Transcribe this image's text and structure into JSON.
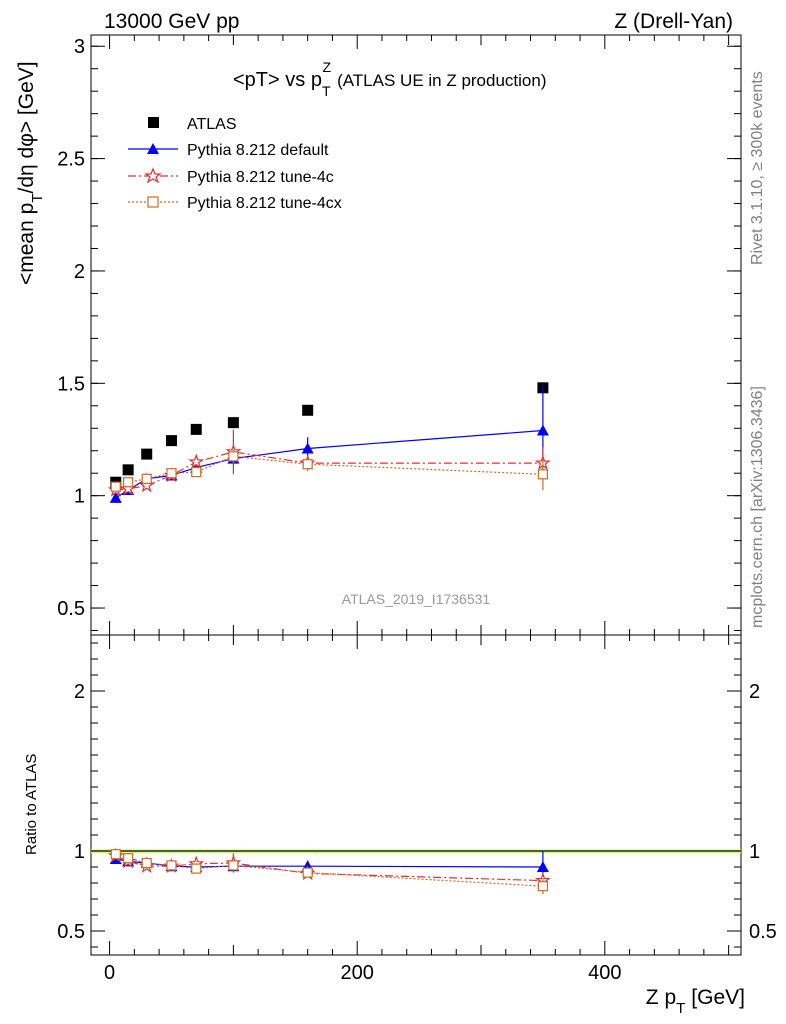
{
  "header": {
    "left_label": "13000 GeV pp",
    "right_label": "Z (Drell-Yan)"
  },
  "side_labels": {
    "rivet": "Rivet 3.1.10, ≥ 300k events",
    "mcplots": "mcplots.cern.ch [arXiv:1306.3436]"
  },
  "chart_data": [
    {
      "type": "scatter",
      "title": "<pT> vs p_T^Z (ATLAS UE in Z production)",
      "title_main": "<pT> vs p",
      "title_sub": "T",
      "title_sup": "Z",
      "title_rest": "(ATLAS UE in Z production)",
      "watermark": "ATLAS_2019_I1736531",
      "ylabel": "<mean p_T/dη dφ> [GeV]",
      "ylabel_pre": "<mean p",
      "ylabel_sub": "T",
      "ylabel_post": "/dη dφ> [GeV]",
      "xlim": [
        -15,
        510
      ],
      "ylim": [
        0.38,
        3.05
      ],
      "y_ticks": [
        0.5,
        1,
        1.5,
        2,
        2.5,
        3
      ],
      "y_tick_labels": [
        "0.5",
        "1",
        "1.5",
        "2",
        "2.5",
        "3"
      ],
      "x_ticks": [
        0,
        200,
        400
      ],
      "legend_position": "top-left",
      "series": [
        {
          "name": "ATLAS",
          "color": "#000000",
          "marker": "square-filled",
          "line": "none",
          "x": [
            5,
            15,
            30,
            50,
            70,
            100,
            160,
            350
          ],
          "y": [
            1.06,
            1.115,
            1.185,
            1.245,
            1.295,
            1.325,
            1.38,
            1.48
          ],
          "yerr": [
            0.0,
            0.0,
            0.0,
            0.0,
            0.0,
            0.0,
            0.0,
            0.0
          ]
        },
        {
          "name": "Pythia 8.212 default",
          "color": "#0000ff",
          "marker": "triangle-filled",
          "line": "solid",
          "x": [
            5,
            15,
            30,
            50,
            70,
            100,
            160,
            350
          ],
          "y": [
            0.99,
            1.025,
            1.075,
            1.09,
            1.125,
            1.165,
            1.21,
            1.29
          ],
          "yerr": [
            0.01,
            0.01,
            0.01,
            0.01,
            0.02,
            0.025,
            0.05,
            0.2
          ]
        },
        {
          "name": "Pythia 8.212 tune-4c",
          "color": "#e03030",
          "marker": "star-open",
          "line": "dashdot",
          "x": [
            5,
            15,
            30,
            50,
            70,
            100,
            160,
            350
          ],
          "y": [
            1.025,
            1.03,
            1.045,
            1.09,
            1.15,
            1.195,
            1.145,
            1.145
          ],
          "yerr": [
            0.01,
            0.01,
            0.01,
            0.015,
            0.03,
            0.1,
            0.03,
            0.07
          ]
        },
        {
          "name": "Pythia 8.212 tune-4cx",
          "color": "#d2691e",
          "marker": "square-open",
          "line": "dotted",
          "x": [
            5,
            15,
            30,
            50,
            70,
            100,
            160,
            350
          ],
          "y": [
            1.04,
            1.06,
            1.075,
            1.1,
            1.105,
            1.175,
            1.14,
            1.095
          ],
          "yerr": [
            0.01,
            0.01,
            0.01,
            0.01,
            0.02,
            0.03,
            0.03,
            0.07
          ]
        }
      ]
    },
    {
      "type": "scatter",
      "ylabel": "Ratio to ATLAS",
      "xlabel": "Z p_T [GeV]",
      "xlabel_pre": "Z p",
      "xlabel_sub": "T",
      "xlabel_post": "[GeV]",
      "xlim": [
        -15,
        510
      ],
      "ylim": [
        0.35,
        2.35
      ],
      "y_ticks": [
        0.5,
        1,
        2
      ],
      "y_tick_labels": [
        "0.5",
        "1",
        "2"
      ],
      "x_ticks": [
        0,
        200,
        400
      ],
      "x_tick_labels": [
        "0",
        "200",
        "400"
      ],
      "reference_band": {
        "value": 1.0,
        "color": "#ccff66"
      },
      "series": [
        {
          "name": "Pythia 8.212 default",
          "color": "#0000ff",
          "marker": "triangle-filled",
          "line": "solid",
          "x": [
            5,
            15,
            30,
            50,
            70,
            100,
            160,
            350
          ],
          "y": [
            0.95,
            0.935,
            0.925,
            0.905,
            0.9,
            0.905,
            0.905,
            0.9
          ],
          "yerr": [
            0.01,
            0.01,
            0.01,
            0.01,
            0.015,
            0.02,
            0.035,
            0.1
          ]
        },
        {
          "name": "Pythia 8.212 tune-4c",
          "color": "#e03030",
          "marker": "star-open",
          "line": "dashdot",
          "x": [
            5,
            15,
            30,
            50,
            70,
            100,
            160,
            350
          ],
          "y": [
            0.97,
            0.935,
            0.905,
            0.905,
            0.92,
            0.925,
            0.86,
            0.815
          ],
          "yerr": [
            0.01,
            0.01,
            0.01,
            0.01,
            0.02,
            0.06,
            0.02,
            0.05
          ]
        },
        {
          "name": "Pythia 8.212 tune-4cx",
          "color": "#d2691e",
          "marker": "square-open",
          "line": "dotted",
          "x": [
            5,
            15,
            30,
            50,
            70,
            100,
            160,
            350
          ],
          "y": [
            0.98,
            0.955,
            0.925,
            0.91,
            0.89,
            0.91,
            0.865,
            0.78
          ],
          "yerr": [
            0.01,
            0.01,
            0.01,
            0.01,
            0.015,
            0.02,
            0.02,
            0.05
          ]
        }
      ]
    }
  ]
}
